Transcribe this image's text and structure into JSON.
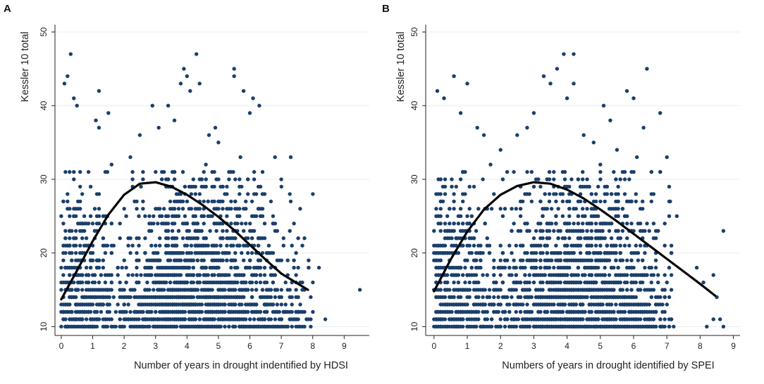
{
  "colors": {
    "background": "#ffffff",
    "plot_background": "#ffffff",
    "grid": "#e8edf0",
    "axis": "#222222",
    "points": "#1a3f6b",
    "fit_line": "#000000",
    "text": "#222222"
  },
  "chart_data": [
    {
      "panel_label": "A",
      "type": "scatter",
      "title": "",
      "xlabel": "Number of years in drought indentified by HDSI",
      "ylabel": "Kessler 10 total",
      "xlim": [
        -0.2,
        9.8
      ],
      "ylim": [
        8.8,
        51
      ],
      "xticks": [
        0,
        1,
        2,
        3,
        4,
        5,
        6,
        7,
        8,
        9
      ],
      "yticks": [
        10,
        20,
        30,
        40,
        50
      ],
      "grid": true,
      "legend": "none",
      "density": {
        "x_range": [
          0,
          8
        ],
        "decay": 20,
        "centers": [
          [
            0.15,
            0.7
          ],
          [
            3.9,
            1.0
          ],
          [
            5.8,
            0.55
          ]
        ],
        "count": 2200,
        "x_step": 0.0667
      },
      "points": [
        [
          0.3,
          47
        ],
        [
          4.3,
          47
        ],
        [
          0.2,
          44
        ],
        [
          0.1,
          43
        ],
        [
          0.4,
          41
        ],
        [
          0.5,
          40
        ],
        [
          1.2,
          42
        ],
        [
          1.1,
          38
        ],
        [
          1.2,
          37
        ],
        [
          1.5,
          39
        ],
        [
          2.9,
          40
        ],
        [
          3.4,
          40
        ],
        [
          3.9,
          45
        ],
        [
          4.0,
          44
        ],
        [
          3.8,
          43
        ],
        [
          4.4,
          43
        ],
        [
          4.1,
          42
        ],
        [
          5.5,
          45
        ],
        [
          5.5,
          44
        ],
        [
          5.8,
          42
        ],
        [
          6.1,
          41
        ],
        [
          6.3,
          40
        ],
        [
          6.0,
          39
        ],
        [
          7.3,
          33
        ],
        [
          6.8,
          33
        ],
        [
          7.0,
          30
        ],
        [
          7.3,
          27
        ],
        [
          7.6,
          26
        ],
        [
          8.2,
          18
        ],
        [
          8.4,
          11
        ],
        [
          9.5,
          15
        ],
        [
          4.7,
          36
        ],
        [
          3.6,
          38
        ],
        [
          2.5,
          36
        ],
        [
          2.2,
          33
        ],
        [
          1.6,
          32
        ],
        [
          5.0,
          35
        ],
        [
          4.9,
          37
        ],
        [
          5.7,
          33
        ],
        [
          3.1,
          37
        ],
        [
          5.4,
          31
        ],
        [
          4.6,
          32
        ]
      ],
      "fit_line": {
        "x": [
          0,
          0.5,
          1,
          1.5,
          2,
          2.5,
          3,
          3.5,
          4,
          4.5,
          5,
          5.5,
          6,
          6.5,
          7,
          7.5,
          7.85
        ],
        "y": [
          13.7,
          17.6,
          21.6,
          25.2,
          27.9,
          29.4,
          29.6,
          29.0,
          27.9,
          26.5,
          24.9,
          23.1,
          21.1,
          19.1,
          17.2,
          15.9,
          15.0
        ]
      }
    },
    {
      "panel_label": "B",
      "type": "scatter",
      "title": "",
      "xlabel": "Numbers of years in drought identified by SPEI",
      "ylabel": "Kessler 10 total",
      "xlim": [
        -0.25,
        9.2
      ],
      "ylim": [
        8.8,
        51
      ],
      "xticks": [
        0,
        1,
        2,
        3,
        4,
        5,
        6,
        7,
        8,
        9
      ],
      "yticks": [
        10,
        20,
        30,
        40,
        50
      ],
      "grid": true,
      "legend": "none",
      "density": {
        "x_range": [
          0,
          7.2
        ],
        "decay": 20,
        "centers": [
          [
            0.2,
            0.8
          ],
          [
            3.9,
            1.0
          ],
          [
            5.6,
            0.55
          ]
        ],
        "count": 2200,
        "x_step": 0.0667
      },
      "points": [
        [
          0.1,
          42
        ],
        [
          0.3,
          41
        ],
        [
          0.6,
          44
        ],
        [
          1.0,
          43
        ],
        [
          0.8,
          39
        ],
        [
          1.3,
          37
        ],
        [
          1.5,
          36
        ],
        [
          3.3,
          44
        ],
        [
          3.7,
          45
        ],
        [
          3.5,
          43
        ],
        [
          3.9,
          47
        ],
        [
          4.2,
          47
        ],
        [
          4.0,
          41
        ],
        [
          4.2,
          43
        ],
        [
          3.0,
          39
        ],
        [
          2.5,
          36
        ],
        [
          2.8,
          37
        ],
        [
          5.1,
          40
        ],
        [
          5.3,
          38
        ],
        [
          5.8,
          42
        ],
        [
          6.4,
          45
        ],
        [
          6.0,
          41
        ],
        [
          6.3,
          37
        ],
        [
          6.8,
          39
        ],
        [
          7.0,
          33
        ],
        [
          6.8,
          31
        ],
        [
          7.1,
          27
        ],
        [
          7.3,
          25
        ],
        [
          7.9,
          18
        ],
        [
          8.1,
          16
        ],
        [
          8.4,
          17
        ],
        [
          8.5,
          14
        ],
        [
          8.7,
          23
        ],
        [
          8.4,
          11
        ],
        [
          8.6,
          11
        ],
        [
          8.7,
          10
        ],
        [
          8.2,
          10
        ],
        [
          4.8,
          35
        ],
        [
          5.5,
          34
        ],
        [
          4.5,
          36
        ],
        [
          2.0,
          34
        ],
        [
          1.7,
          32
        ],
        [
          6.1,
          33
        ],
        [
          5.0,
          32
        ],
        [
          2.2,
          31
        ]
      ],
      "fit_line": {
        "x": [
          0,
          0.5,
          1,
          1.5,
          2,
          2.5,
          3,
          3.5,
          4,
          4.5,
          5,
          5.5,
          6,
          6.5,
          7,
          7.5,
          8,
          8.45
        ],
        "y": [
          14.8,
          19.1,
          22.9,
          25.9,
          27.9,
          29.1,
          29.6,
          29.4,
          28.6,
          27.4,
          25.9,
          24.3,
          22.6,
          20.9,
          19.2,
          17.5,
          15.8,
          14.2
        ]
      }
    }
  ]
}
